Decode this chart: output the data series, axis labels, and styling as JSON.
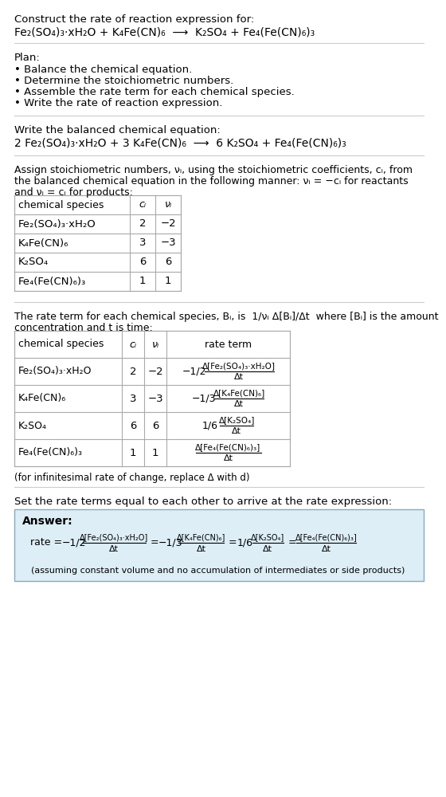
{
  "bg_color": "#ffffff",
  "text_color": "#000000",
  "table_line_color": "#aaaaaa",
  "answer_box_color": "#ddeef6",
  "answer_box_edge": "#88aabb",
  "title_text": "Construct the rate of reaction expression for:",
  "reaction_unbalanced": "Fe₂(SO₄)₃·xH₂O + K₄Fe(CN)₆  ⟶  K₂SO₄ + Fe₄(Fe(CN)₆)₃",
  "plan_header": "Plan:",
  "plan_items": [
    "• Balance the chemical equation.",
    "• Determine the stoichiometric numbers.",
    "• Assemble the rate term for each chemical species.",
    "• Write the rate of reaction expression."
  ],
  "balanced_header": "Write the balanced chemical equation:",
  "balanced_eq": "2 Fe₂(SO₄)₃·xH₂O + 3 K₄Fe(CN)₆  ⟶  6 K₂SO₄ + Fe₄(Fe(CN)₆)₃",
  "stoich_line1": "Assign stoichiometric numbers, νᵢ, using the stoichiometric coefficients, cᵢ, from",
  "stoich_line2": "the balanced chemical equation in the following manner: νᵢ = −cᵢ for reactants",
  "stoich_line3": "and νᵢ = cᵢ for products:",
  "table1_col_headers": [
    "chemical species",
    "cᵢ",
    "νᵢ"
  ],
  "table1_rows": [
    [
      "Fe₂(SO₄)₃·xH₂O",
      "2",
      "−2"
    ],
    [
      "K₄Fe(CN)₆",
      "3",
      "−3"
    ],
    [
      "K₂SO₄",
      "6",
      "6"
    ],
    [
      "Fe₄(Fe(CN)₆)₃",
      "1",
      "1"
    ]
  ],
  "rate_intro_line1": "The rate term for each chemical species, Bᵢ, is  1/νᵢ Δ[Bᵢ]/Δt  where [Bᵢ] is the amount",
  "rate_intro_line2": "concentration and t is time:",
  "table2_col_headers": [
    "chemical species",
    "cᵢ",
    "νᵢ",
    "rate term"
  ],
  "table2_species": [
    "Fe₂(SO₄)₃·xH₂O",
    "K₄Fe(CN)₆",
    "K₂SO₄",
    "Fe₄(Fe(CN)₆)₃"
  ],
  "table2_ci": [
    "2",
    "3",
    "6",
    "1"
  ],
  "table2_vi": [
    "−2",
    "−3",
    "6",
    "1"
  ],
  "table2_coeff": [
    "−1/2",
    "−1/3",
    "1/6",
    ""
  ],
  "table2_numer": [
    "Δ[Fe₂(SO₄)₃·xH₂O]",
    "Δ[K₄Fe(CN)₆]",
    "Δ[K₂SO₄]",
    "Δ[Fe₄(Fe(CN)₆)₃]"
  ],
  "table2_denom": [
    "Δt",
    "Δt",
    "Δt",
    "Δt"
  ],
  "infinitesimal_note": "(for infinitesimal rate of change, replace Δ with d)",
  "rate_expr_header": "Set the rate terms equal to each other to arrive at the rate expression:",
  "answer_label": "Answer:",
  "rate_numer": [
    "Δ[Fe₂(SO₄)₃·xH₂O]",
    "Δ[K₄Fe(CN)₆]",
    "Δ[K₂SO₄]",
    "Δ[Fe₄(Fe(CN)₆)₃]"
  ],
  "rate_coeff": [
    "−1/2",
    "−1/3",
    "1/6",
    ""
  ],
  "assuming_note": "(assuming constant volume and no accumulation of intermediates or side products)"
}
